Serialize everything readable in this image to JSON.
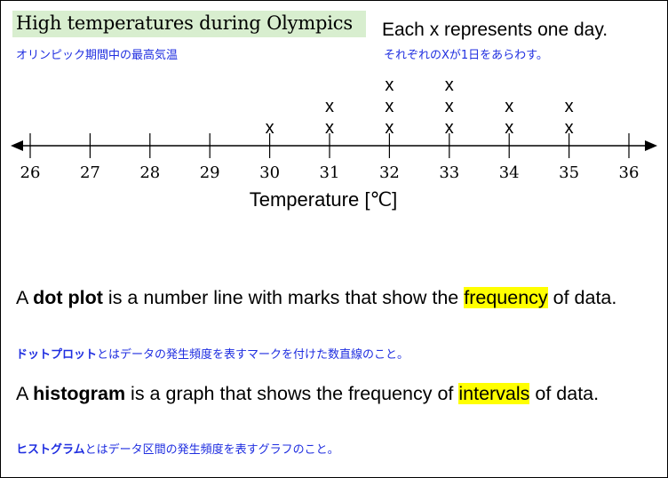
{
  "title": "High temperatures during Olympics",
  "title_jp": "オリンピック期間中の最高気温",
  "note": "Each x represents one day.",
  "note_jp": "それぞれのXが1日をあらわす。",
  "colors": {
    "title_bg": "#d8eecf",
    "japanese_text": "#1f2ee0",
    "highlight": "#ffff00"
  },
  "chart_data": {
    "type": "dot plot",
    "xlabel": "Temperature [℃]",
    "xlim": [
      26,
      36
    ],
    "ticks": [
      26,
      27,
      28,
      29,
      30,
      31,
      32,
      33,
      34,
      35,
      36
    ],
    "marker": "x",
    "points": [
      {
        "x": 30,
        "count": 1
      },
      {
        "x": 31,
        "count": 2
      },
      {
        "x": 32,
        "count": 3
      },
      {
        "x": 33,
        "count": 3
      },
      {
        "x": 34,
        "count": 2
      },
      {
        "x": 35,
        "count": 2
      }
    ]
  },
  "dot_plot_def": {
    "pre": "A ",
    "term": "dot plot",
    "mid": " is a number line with marks that show the ",
    "highlight": "frequency",
    "post": " of data.",
    "jp_term": "ドットプロット",
    "jp_rest": "とはデータの発生頻度を表すマークを付けた数直線のこと。"
  },
  "histogram_def": {
    "pre": "A ",
    "term": "histogram",
    "mid": " is a graph that shows the frequency of ",
    "highlight": "intervals",
    "post": " of data.",
    "jp_term": "ヒストグラム",
    "jp_rest": "とはデータ区間の発生頻度を表すグラフのこと。"
  }
}
